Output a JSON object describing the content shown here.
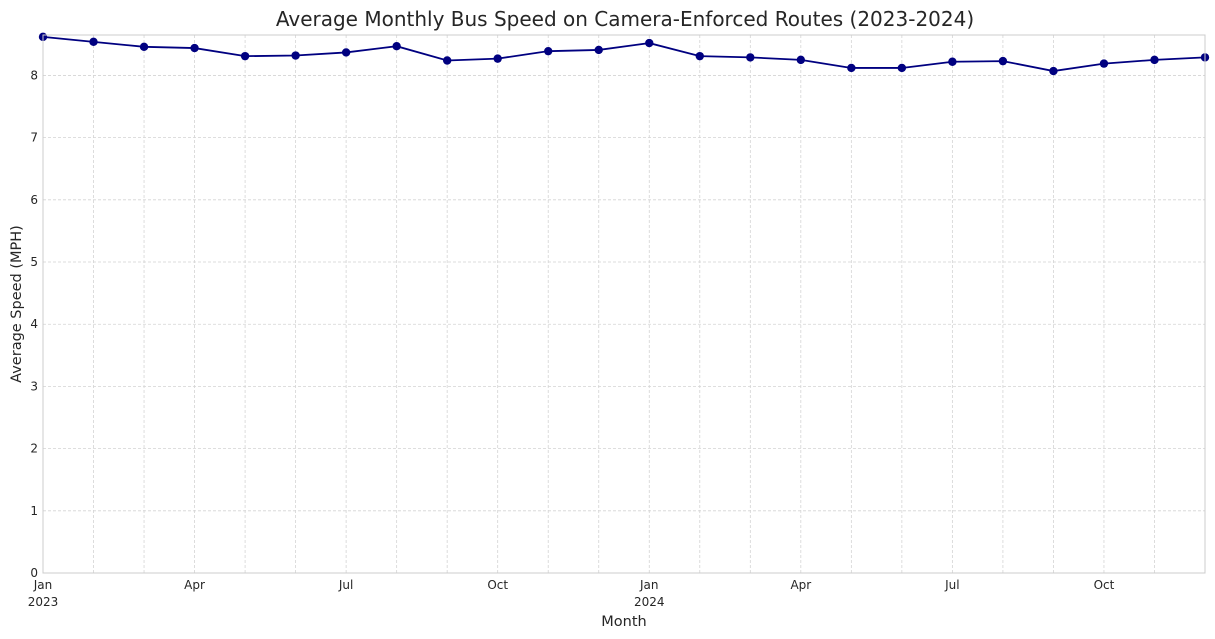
{
  "chart_data": {
    "type": "line",
    "title": "Average Monthly Bus Speed on Camera-Enforced Routes (2023-2024)",
    "xlabel": "Month",
    "ylabel": "Average Speed (MPH)",
    "ylim": [
      0,
      8.65
    ],
    "yticks": [
      0,
      1,
      2,
      3,
      4,
      5,
      6,
      7,
      8
    ],
    "xticks": [
      {
        "x": "2023-01",
        "label": "Jan",
        "year": "2023"
      },
      {
        "x": "2023-04",
        "label": "Apr",
        "year": ""
      },
      {
        "x": "2023-07",
        "label": "Jul",
        "year": ""
      },
      {
        "x": "2023-10",
        "label": "Oct",
        "year": ""
      },
      {
        "x": "2024-01",
        "label": "Jan",
        "year": "2024"
      },
      {
        "x": "2024-04",
        "label": "Apr",
        "year": ""
      },
      {
        "x": "2024-07",
        "label": "Jul",
        "year": ""
      },
      {
        "x": "2024-10",
        "label": "Oct",
        "year": ""
      }
    ],
    "grid": true,
    "series": [
      {
        "color": "#000080",
        "marker": "circle",
        "x": [
          "2023-01",
          "2023-02",
          "2023-03",
          "2023-04",
          "2023-05",
          "2023-06",
          "2023-07",
          "2023-08",
          "2023-09",
          "2023-10",
          "2023-11",
          "2023-12",
          "2024-01",
          "2024-02",
          "2024-03",
          "2024-04",
          "2024-05",
          "2024-06",
          "2024-07",
          "2024-08",
          "2024-09",
          "2024-10",
          "2024-11",
          "2024-12"
        ],
        "values": [
          8.62,
          8.54,
          8.46,
          8.44,
          8.31,
          8.32,
          8.37,
          8.47,
          8.24,
          8.27,
          8.39,
          8.41,
          8.52,
          8.31,
          8.29,
          8.25,
          8.12,
          8.12,
          8.22,
          8.23,
          8.07,
          8.19,
          8.25,
          8.29
        ]
      }
    ]
  }
}
